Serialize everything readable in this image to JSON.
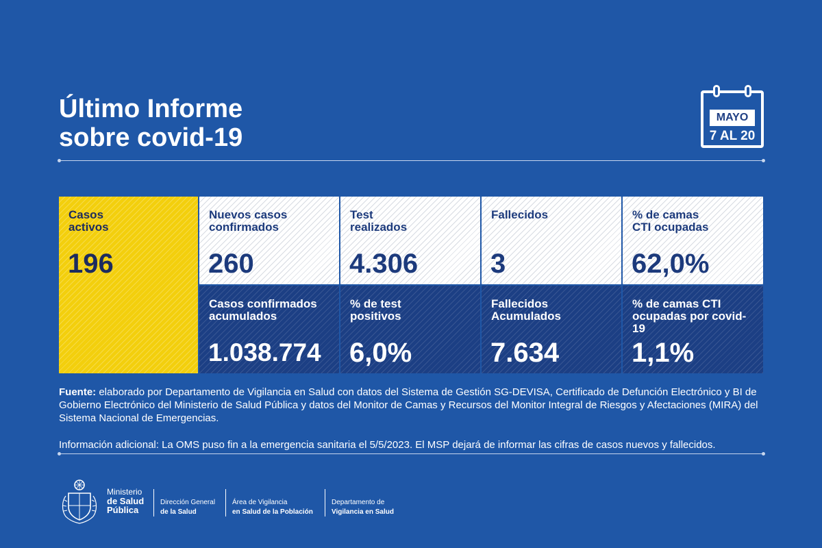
{
  "title": {
    "line1": "Último Informe",
    "line2": "sobre covid-19"
  },
  "calendar": {
    "month": "MAYO",
    "range": "7 AL 20"
  },
  "cells": {
    "casos_activos": {
      "label1": "Casos",
      "label2": "activos",
      "value": "196"
    },
    "nuevos_casos": {
      "label1": "Nuevos casos",
      "label2": "confirmados",
      "value": "260"
    },
    "test_realizados": {
      "label1": "Test",
      "label2": "realizados",
      "value": "4.306"
    },
    "fallecidos": {
      "label1": "Fallecidos",
      "label2": "",
      "value": "3"
    },
    "camas_cti": {
      "label1": "% de camas",
      "label2": "CTI ocupadas",
      "value": "62,0%"
    },
    "casos_acumulados": {
      "label1": "Casos confirmados",
      "label2": "acumulados",
      "value": "1.038.774"
    },
    "test_positivos": {
      "label1": "% de test",
      "label2": "positivos",
      "value": "6,0%"
    },
    "fallecidos_acumulados": {
      "label1": "Fallecidos",
      "label2": "Acumulados",
      "value": "7.634"
    },
    "camas_cti_covid": {
      "label1": "% de camas CTI",
      "label2": "ocupadas por covid-19",
      "value": "1,1%"
    }
  },
  "source": {
    "prefix": "Fuente:",
    "text": " elaborado por Departamento de Vigilancia en Salud con datos del Sistema de Gestión SG-DEVISA, Certificado de Defunción Electrónico y BI de Gobierno Electrónico del Ministerio de Salud Pública y datos del Monitor de Camas y Recursos del Monitor  Integral de Riesgos y Afectaciones (MIRA) del Sistema Nacional de Emergencias."
  },
  "additional": "Información adicional: La OMS puso fin a la emergencia sanitaria el 5/5/2023. El MSP dejará de informar las cifras de casos nuevos y fallecidos.",
  "footer": {
    "ministry": {
      "line1": "Ministerio",
      "line2": "de Salud",
      "line3": "Pública"
    },
    "dir": {
      "line1": "Dirección General",
      "line2": "de la Salud"
    },
    "area": {
      "line1": "Área de Vigilancia",
      "line2": "en Salud de la Población"
    },
    "dept": {
      "line1": "Departamento de",
      "line2": "Vigilancia en Salud"
    }
  },
  "colors": {
    "background": "#1f57a7",
    "highlight": "#f3cf0d",
    "navy": "#1c3f84",
    "text_dark": "#1c3a7c"
  },
  "icons": {
    "calendar": "calendar-icon",
    "emblem": "coat-of-arms-icon"
  }
}
